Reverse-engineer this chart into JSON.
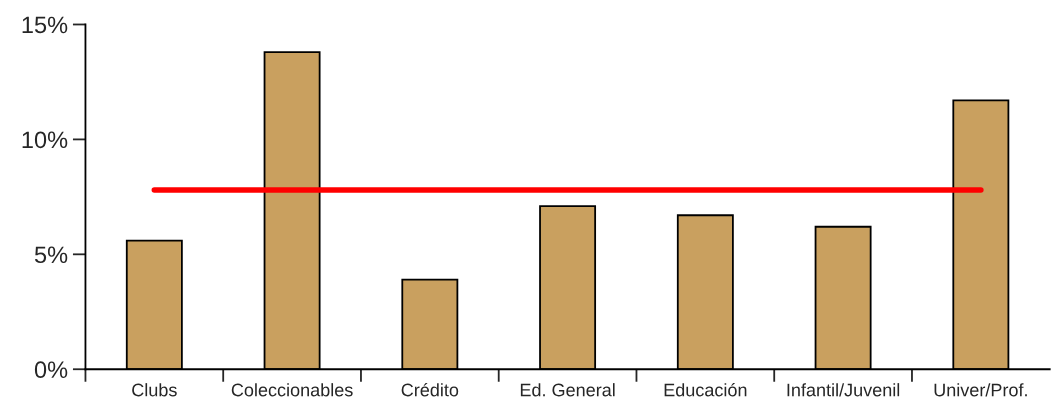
{
  "chart_data": {
    "type": "bar",
    "categories": [
      "Clubs",
      "Coleccionables",
      "Crédito",
      "Ed. General",
      "Educación",
      "Infantil/Juvenil",
      "Univer/Prof."
    ],
    "series": [
      {
        "color": "#c9a05f",
        "values": [
          5.6,
          13.8,
          3.9,
          7.1,
          6.7,
          6.2,
          11.7
        ]
      },
      {
        "type": "line",
        "color": "#ff0000",
        "values": [
          7.8,
          7.8,
          7.8,
          7.8,
          7.8,
          7.8,
          7.8
        ]
      }
    ],
    "ylim": [
      0,
      15
    ],
    "yticks": [
      {
        "value": 0,
        "label": "0%"
      },
      {
        "value": 5,
        "label": "5%"
      },
      {
        "value": 10,
        "label": "10%"
      },
      {
        "value": 15,
        "label": "15%"
      }
    ],
    "grid": false,
    "legend": false
  }
}
